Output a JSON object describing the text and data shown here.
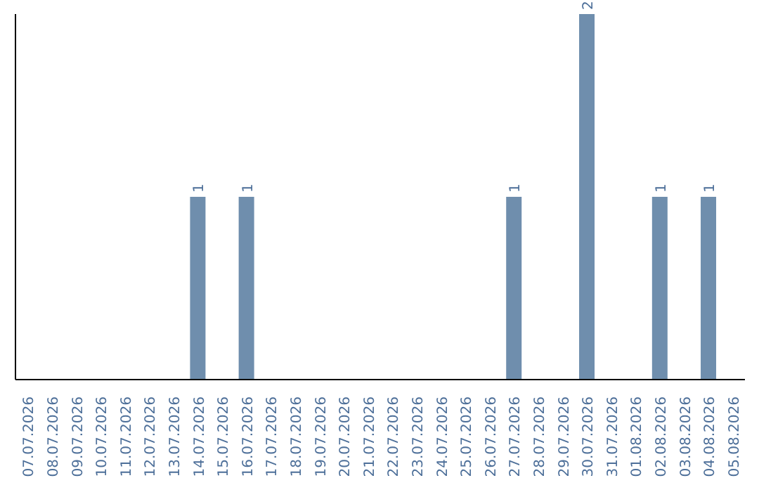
{
  "chart_data": {
    "type": "bar",
    "categories": [
      "07.07.2026",
      "08.07.2026",
      "09.07.2026",
      "10.07.2026",
      "11.07.2026",
      "12.07.2026",
      "13.07.2026",
      "14.07.2026",
      "15.07.2026",
      "16.07.2026",
      "17.07.2026",
      "18.07.2026",
      "19.07.2026",
      "20.07.2026",
      "21.07.2026",
      "22.07.2026",
      "23.07.2026",
      "24.07.2026",
      "25.07.2026",
      "26.07.2026",
      "27.07.2026",
      "28.07.2026",
      "29.07.2026",
      "30.07.2026",
      "31.07.2026",
      "01.08.2026",
      "02.08.2026",
      "03.08.2026",
      "04.08.2026",
      "05.08.2026"
    ],
    "values": [
      0,
      0,
      0,
      0,
      0,
      0,
      0,
      1,
      0,
      1,
      0,
      0,
      0,
      0,
      0,
      0,
      0,
      0,
      0,
      0,
      1,
      0,
      0,
      2,
      0,
      0,
      1,
      0,
      1,
      0
    ],
    "value_labels": [
      null,
      null,
      null,
      null,
      null,
      null,
      null,
      "1",
      null,
      "1",
      null,
      null,
      null,
      null,
      null,
      null,
      null,
      null,
      null,
      null,
      "1",
      null,
      null,
      "2",
      null,
      null,
      "1",
      null,
      "1",
      null
    ],
    "color": "#6f8ead",
    "grid": false,
    "legend": false
  }
}
